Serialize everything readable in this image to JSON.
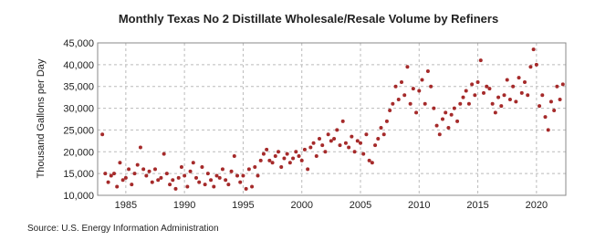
{
  "chart_data": {
    "type": "scatter",
    "title": "Monthly Texas No 2 Distillate Wholesale/Resale Volume by Refiners",
    "y_label": "Thousand Gallons per Day",
    "source": "Source: U.S. Energy Information Administration",
    "color": "#a52a2a",
    "grid": true,
    "xlim": [
      1982.6,
      2022.5
    ],
    "xticks": [
      1985,
      1990,
      1995,
      2000,
      2005,
      2010,
      2015,
      2020
    ],
    "ylim": [
      10000,
      45000
    ],
    "yticks": [
      {
        "value": 10000,
        "label": "10,000"
      },
      {
        "value": 15000,
        "label": "15,000"
      },
      {
        "value": 20000,
        "label": "20,000"
      },
      {
        "value": 25000,
        "label": "25,000"
      },
      {
        "value": 30000,
        "label": "30,000"
      },
      {
        "value": 35000,
        "label": "35,000"
      },
      {
        "value": 40000,
        "label": "40,000"
      },
      {
        "value": 45000,
        "label": "45,000"
      }
    ],
    "x": [
      1983,
      1983.25,
      1983.5,
      1983.75,
      1984,
      1984.25,
      1984.5,
      1984.75,
      1985,
      1985.25,
      1985.5,
      1985.75,
      1986,
      1986.25,
      1986.5,
      1986.75,
      1987,
      1987.25,
      1987.5,
      1987.75,
      1988,
      1988.25,
      1988.5,
      1988.75,
      1989,
      1989.25,
      1989.5,
      1989.75,
      1990,
      1990.25,
      1990.5,
      1990.75,
      1991,
      1991.25,
      1991.5,
      1991.75,
      1992,
      1992.25,
      1992.5,
      1992.75,
      1993,
      1993.25,
      1993.5,
      1993.75,
      1994,
      1994.25,
      1994.5,
      1994.75,
      1995,
      1995.25,
      1995.5,
      1995.75,
      1996,
      1996.25,
      1996.5,
      1996.75,
      1997,
      1997.25,
      1997.5,
      1997.75,
      1998,
      1998.25,
      1998.5,
      1998.75,
      1999,
      1999.25,
      1999.5,
      1999.75,
      2000,
      2000.25,
      2000.5,
      2000.75,
      2001,
      2001.25,
      2001.5,
      2001.75,
      2002,
      2002.25,
      2002.5,
      2002.75,
      2003,
      2003.25,
      2003.5,
      2003.75,
      2004,
      2004.25,
      2004.5,
      2004.75,
      2005,
      2005.25,
      2005.5,
      2005.75,
      2006,
      2006.25,
      2006.5,
      2006.75,
      2007,
      2007.25,
      2007.5,
      2007.75,
      2008,
      2008.25,
      2008.5,
      2008.75,
      2009,
      2009.25,
      2009.5,
      2009.75,
      2010,
      2010.25,
      2010.5,
      2010.75,
      2011,
      2011.25,
      2011.5,
      2011.75,
      2012,
      2012.25,
      2012.5,
      2012.75,
      2013,
      2013.25,
      2013.5,
      2013.75,
      2014,
      2014.25,
      2014.5,
      2014.75,
      2015,
      2015.25,
      2015.5,
      2015.75,
      2016,
      2016.25,
      2016.5,
      2016.75,
      2017,
      2017.25,
      2017.5,
      2017.75,
      2018,
      2018.25,
      2018.5,
      2018.75,
      2019,
      2019.25,
      2019.5,
      2019.75,
      2020,
      2020.25,
      2020.5,
      2020.75,
      2021,
      2021.25,
      2021.5,
      2021.75,
      2022,
      2022.25
    ],
    "values": [
      24000,
      15000,
      13000,
      14500,
      15000,
      12000,
      17500,
      13500,
      14000,
      16000,
      12500,
      15000,
      17000,
      21000,
      16000,
      14500,
      15500,
      13000,
      16000,
      13500,
      14000,
      19500,
      15000,
      12500,
      13500,
      11500,
      14000,
      16500,
      14500,
      12000,
      15500,
      17500,
      14000,
      13000,
      16500,
      12500,
      15000,
      13500,
      12000,
      14500,
      14000,
      16000,
      13500,
      12500,
      15500,
      19000,
      14500,
      13000,
      14500,
      11500,
      16000,
      12000,
      16500,
      14500,
      18000,
      19500,
      20500,
      18000,
      17500,
      19000,
      20000,
      16500,
      18500,
      19500,
      17500,
      18500,
      20000,
      19000,
      18000,
      20500,
      16000,
      21000,
      22000,
      19000,
      23000,
      21500,
      20000,
      24000,
      22500,
      23000,
      25000,
      21500,
      27000,
      22000,
      21000,
      23500,
      20000,
      22500,
      22000,
      19500,
      24000,
      18000,
      17500,
      21500,
      23000,
      25500,
      24000,
      27000,
      29500,
      31000,
      35000,
      32000,
      36000,
      33000,
      39500,
      31000,
      34500,
      29000,
      34000,
      36500,
      31000,
      38500,
      35000,
      30000,
      26000,
      24000,
      27500,
      29000,
      25500,
      28500,
      30000,
      27000,
      31000,
      32500,
      34000,
      31000,
      35500,
      33000,
      36000,
      41000,
      33500,
      35000,
      34500,
      31000,
      29000,
      32500,
      30500,
      33000,
      36500,
      32000,
      35000,
      31500,
      37000,
      33500,
      36000,
      33000,
      39500,
      43500,
      40000,
      30500,
      33000,
      28000,
      25000,
      31500,
      29500,
      35000,
      32000,
      35500
    ]
  }
}
